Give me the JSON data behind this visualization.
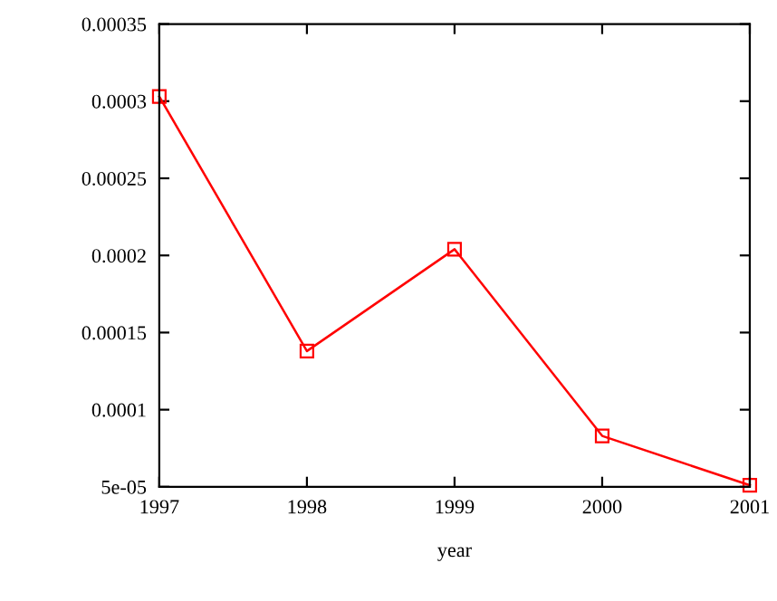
{
  "chart_data": {
    "type": "line",
    "xlabel": "year",
    "x": [
      1997,
      1998,
      1999,
      2000,
      2001
    ],
    "series": [
      {
        "color": "#ff0000",
        "values": [
          0.000303,
          0.000138,
          0.000204,
          8.3e-05,
          5.1e-05
        ]
      }
    ],
    "xlim": [
      1997,
      2001
    ],
    "xticks": [
      1997,
      1998,
      1999,
      2000,
      2001
    ],
    "ylim": [
      5e-05,
      0.00035
    ],
    "yticks": [
      {
        "value": 5e-05,
        "label": "5e-05"
      },
      {
        "value": 0.0001,
        "label": "0.0001"
      },
      {
        "value": 0.00015,
        "label": "0.00015"
      },
      {
        "value": 0.0002,
        "label": "0.0002"
      },
      {
        "value": 0.00025,
        "label": "0.00025"
      },
      {
        "value": 0.0003,
        "label": "0.0003"
      },
      {
        "value": 0.00035,
        "label": "0.00035"
      }
    ],
    "marker": "square",
    "line_style": "solid",
    "grid": false,
    "legend": false
  }
}
